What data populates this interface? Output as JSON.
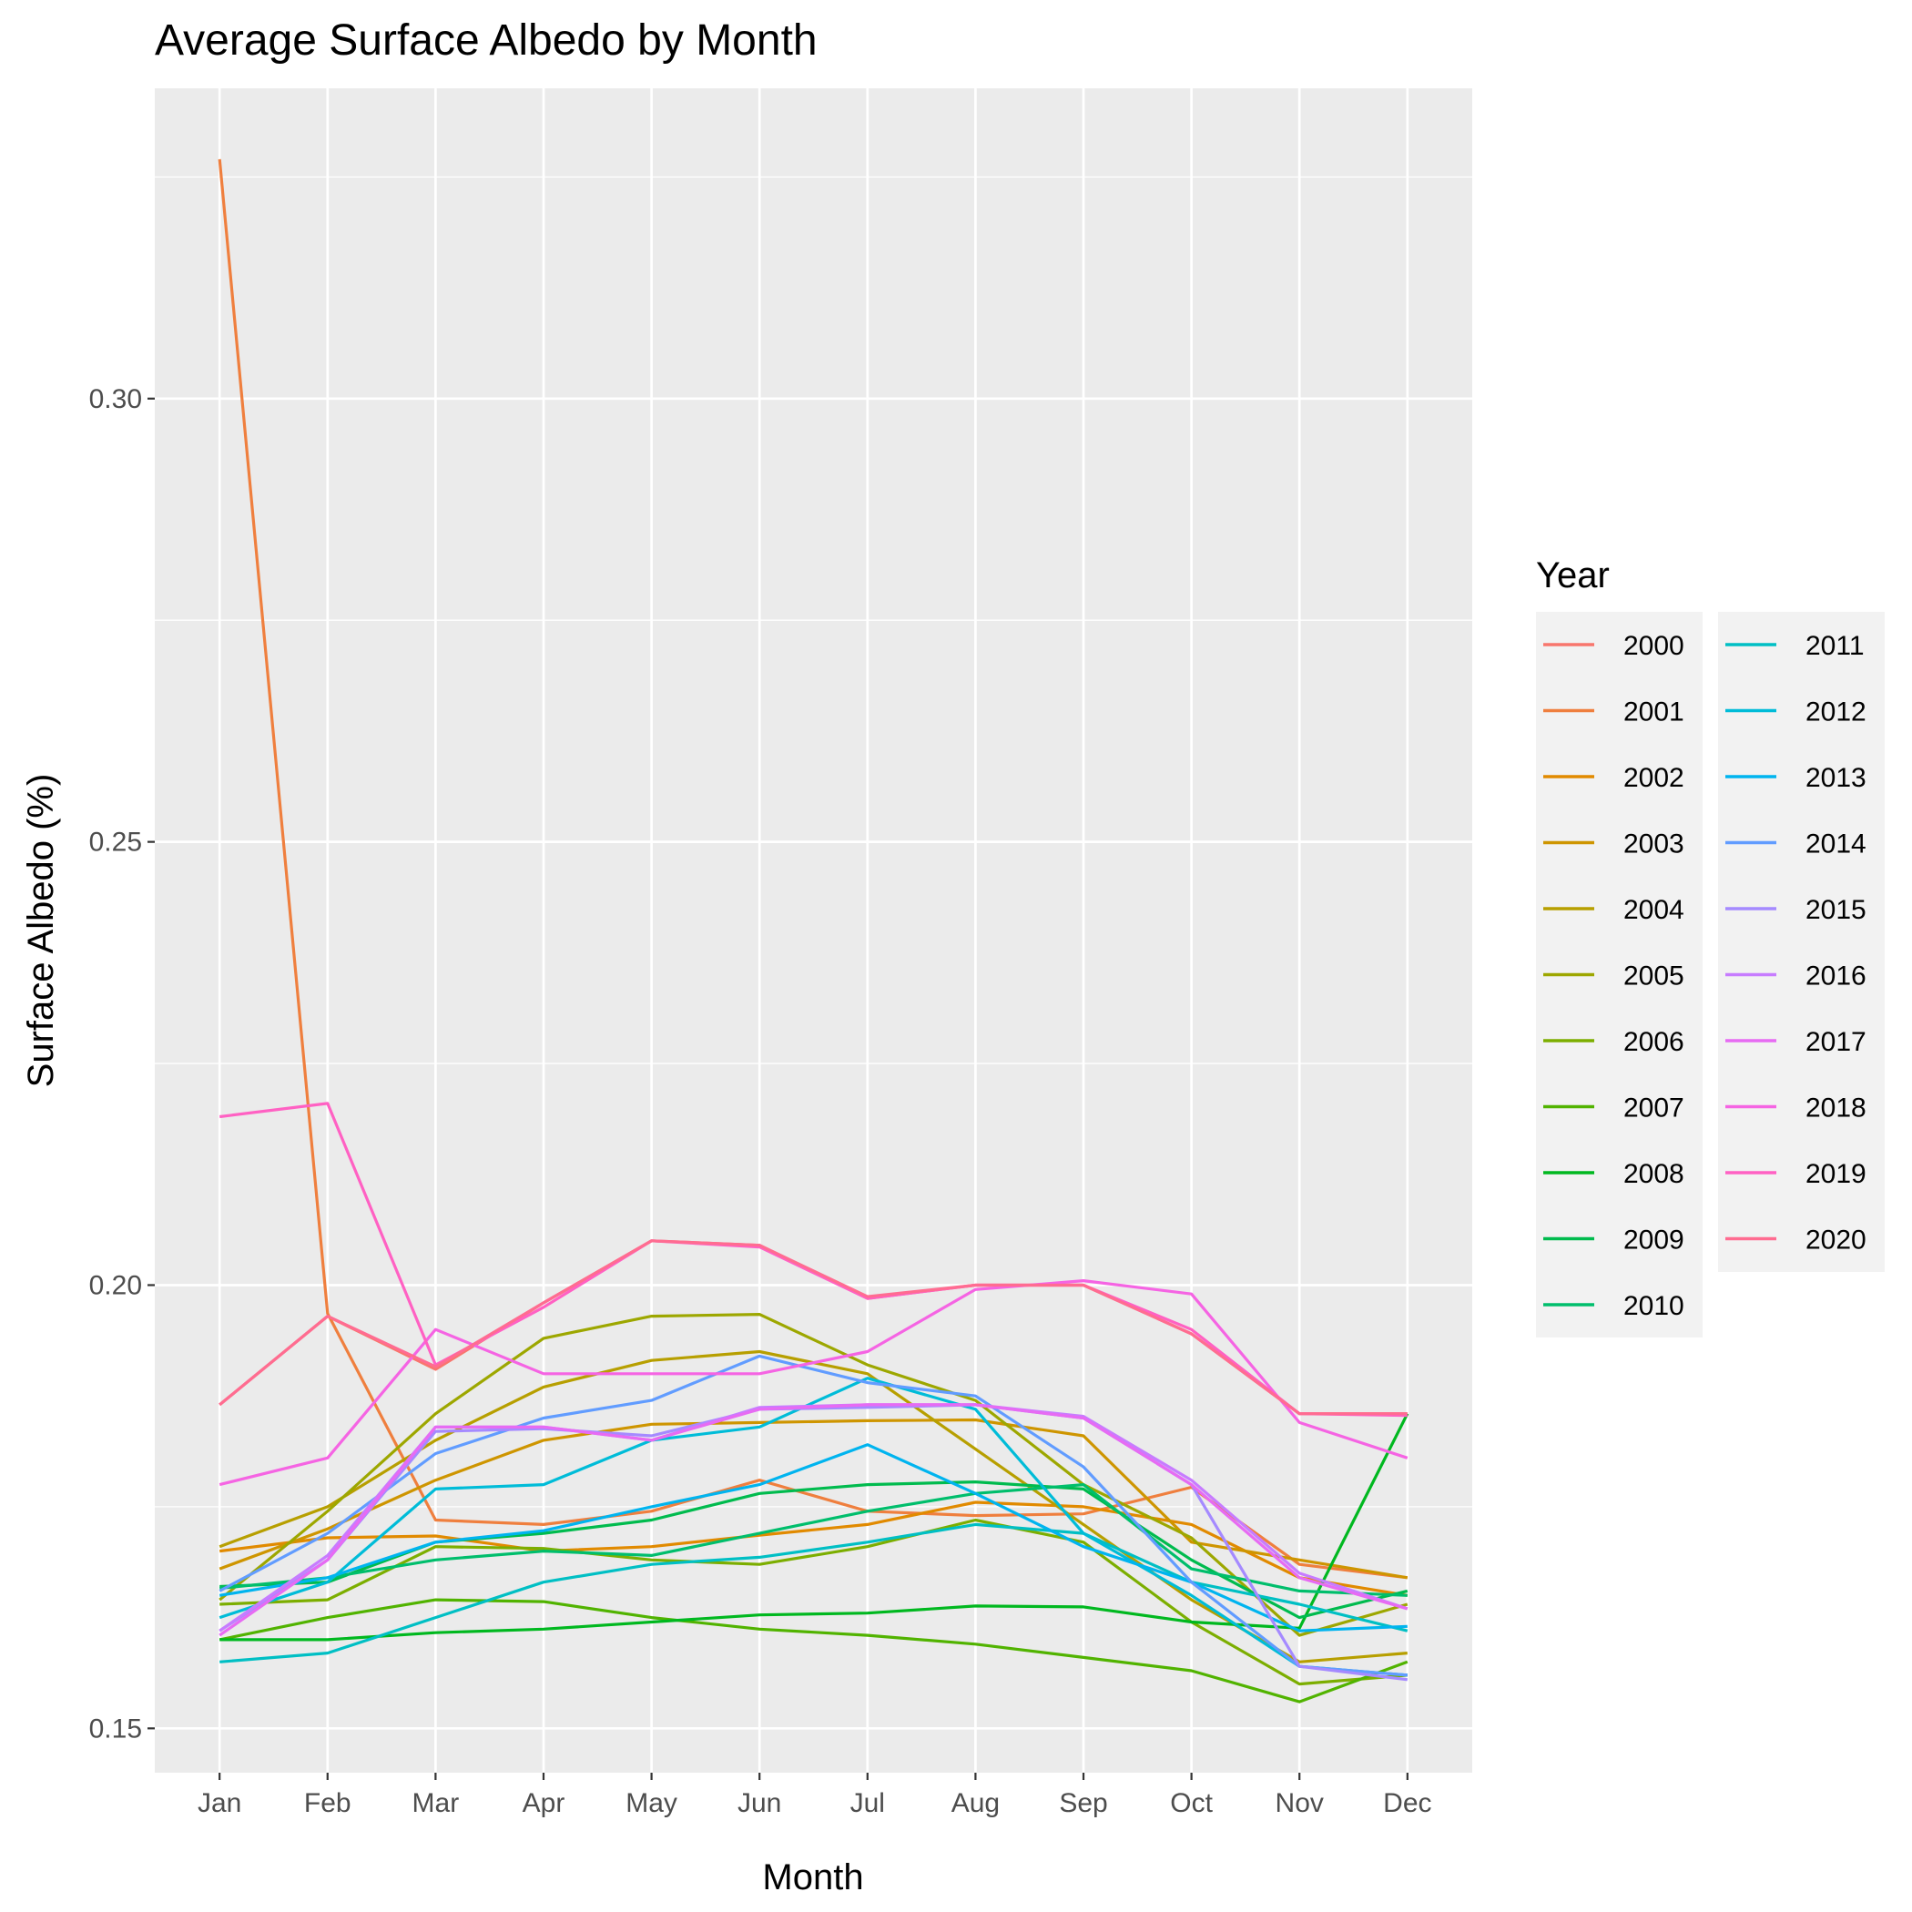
{
  "chart_data": {
    "type": "line",
    "title": "Average Surface Albedo by Month",
    "xlabel": "Month",
    "ylabel": "Surface Albedo (%)",
    "categories": [
      "Jan",
      "Feb",
      "Mar",
      "Apr",
      "May",
      "Jun",
      "Jul",
      "Aug",
      "Sep",
      "Oct",
      "Nov",
      "Dec"
    ],
    "ylim": [
      0.145,
      0.335
    ],
    "yticks": [
      0.15,
      0.2,
      0.25,
      0.3
    ],
    "ytick_labels": [
      "0.15",
      "0.20",
      "0.25",
      "0.30"
    ],
    "grid": true,
    "legend_title": "Year",
    "legend_position": "right",
    "series": [
      {
        "name": "2000",
        "color": "#F8766D",
        "values": [
          0.1865,
          0.1965,
          0.1905,
          0.198,
          0.205,
          0.2045,
          0.1985,
          0.2,
          0.2,
          0.1945,
          0.1855,
          0.1855
        ]
      },
      {
        "name": "2001",
        "color": "#EF7F3E",
        "values": [
          0.327,
          0.1968,
          0.1735,
          0.173,
          0.1745,
          0.178,
          0.1745,
          0.174,
          0.1742,
          0.1772,
          0.1685,
          0.167
        ]
      },
      {
        "name": "2002",
        "color": "#E18A00",
        "values": [
          0.17,
          0.1715,
          0.1717,
          0.17,
          0.1705,
          0.1718,
          0.173,
          0.1755,
          0.175,
          0.173,
          0.167,
          0.165
        ]
      },
      {
        "name": "2003",
        "color": "#CE9500",
        "values": [
          0.168,
          0.1725,
          0.178,
          0.1825,
          0.1843,
          0.1845,
          0.1847,
          0.1848,
          0.183,
          0.171,
          0.169,
          0.167
        ]
      },
      {
        "name": "2004",
        "color": "#B79F00",
        "values": [
          0.1705,
          0.175,
          0.1825,
          0.1885,
          0.1915,
          0.1925,
          0.19,
          0.1815,
          0.173,
          0.1645,
          0.1575,
          0.1585
        ]
      },
      {
        "name": "2005",
        "color": "#9DA700",
        "values": [
          0.1645,
          0.1745,
          0.1855,
          0.194,
          0.1965,
          0.1967,
          0.191,
          0.187,
          0.1775,
          0.1715,
          0.1605,
          0.164
        ]
      },
      {
        "name": "2006",
        "color": "#7CAE00",
        "values": [
          0.164,
          0.1645,
          0.1705,
          0.1703,
          0.169,
          0.1685,
          0.1705,
          0.1735,
          0.171,
          0.162,
          0.155,
          0.156
        ]
      },
      {
        "name": "2007",
        "color": "#51B300",
        "values": [
          0.16,
          0.1625,
          0.1645,
          0.1643,
          0.1625,
          0.1612,
          0.1605,
          0.1595,
          0.158,
          0.1565,
          0.153,
          0.1575
        ]
      },
      {
        "name": "2008",
        "color": "#00B81F",
        "values": [
          0.16,
          0.16,
          0.1608,
          0.1612,
          0.162,
          0.1628,
          0.163,
          0.1638,
          0.1637,
          0.162,
          0.1613,
          0.1855
        ]
      },
      {
        "name": "2009",
        "color": "#00BB4E",
        "values": [
          0.166,
          0.1665,
          0.171,
          0.172,
          0.1735,
          0.1765,
          0.1775,
          0.1778,
          0.177,
          0.169,
          0.1625,
          0.1655
        ]
      },
      {
        "name": "2010",
        "color": "#00BE6C",
        "values": [
          0.1658,
          0.167,
          0.169,
          0.17,
          0.1695,
          0.172,
          0.1745,
          0.1765,
          0.1775,
          0.168,
          0.1655,
          0.165
        ]
      },
      {
        "name": "2011",
        "color": "#00BFC4",
        "values": [
          0.1575,
          0.1585,
          0.1625,
          0.1665,
          0.1685,
          0.1693,
          0.171,
          0.173,
          0.172,
          0.1665,
          0.164,
          0.161
        ]
      },
      {
        "name": "2012",
        "color": "#00BCD8",
        "values": [
          0.1625,
          0.1665,
          0.177,
          0.1775,
          0.1825,
          0.184,
          0.1895,
          0.186,
          0.172,
          0.165,
          0.157,
          0.156
        ]
      },
      {
        "name": "2013",
        "color": "#00B4EF",
        "values": [
          0.165,
          0.167,
          0.171,
          0.1723,
          0.175,
          0.1775,
          0.182,
          0.1765,
          0.1705,
          0.1665,
          0.161,
          0.1615
        ]
      },
      {
        "name": "2014",
        "color": "#619CFF",
        "values": [
          0.1655,
          0.172,
          0.181,
          0.185,
          0.187,
          0.192,
          0.189,
          0.1875,
          0.1795,
          0.1665,
          0.157,
          0.156
        ]
      },
      {
        "name": "2015",
        "color": "#A58AFF",
        "values": [
          0.161,
          0.169,
          0.1835,
          0.1838,
          0.183,
          0.186,
          0.1862,
          0.1865,
          0.185,
          0.1775,
          0.157,
          0.1555
        ]
      },
      {
        "name": "2016",
        "color": "#C77CFF",
        "values": [
          0.161,
          0.1695,
          0.184,
          0.184,
          0.1825,
          0.1862,
          0.1865,
          0.1865,
          0.1852,
          0.178,
          0.1675,
          0.1635
        ]
      },
      {
        "name": "2017",
        "color": "#E76BF3",
        "values": [
          0.1605,
          0.169,
          0.184,
          0.184,
          0.1825,
          0.186,
          0.1865,
          0.1865,
          0.185,
          0.1775,
          0.167,
          0.1635
        ]
      },
      {
        "name": "2018",
        "color": "#F564E3",
        "values": [
          0.1775,
          0.1805,
          0.195,
          0.19,
          0.19,
          0.19,
          0.1925,
          0.1995,
          0.2005,
          0.199,
          0.1845,
          0.1805
        ]
      },
      {
        "name": "2019",
        "color": "#FF61C3",
        "values": [
          0.219,
          0.2205,
          0.191,
          0.1975,
          0.205,
          0.2043,
          0.1985,
          0.2,
          0.2,
          0.195,
          0.1855,
          0.1853
        ]
      },
      {
        "name": "2020",
        "color": "#FF6C91",
        "values": [
          0.1865,
          0.1965,
          0.1908,
          0.198,
          0.205,
          0.2045,
          0.1987,
          0.2,
          0.2,
          0.1945,
          0.1855,
          0.1855
        ]
      }
    ]
  }
}
